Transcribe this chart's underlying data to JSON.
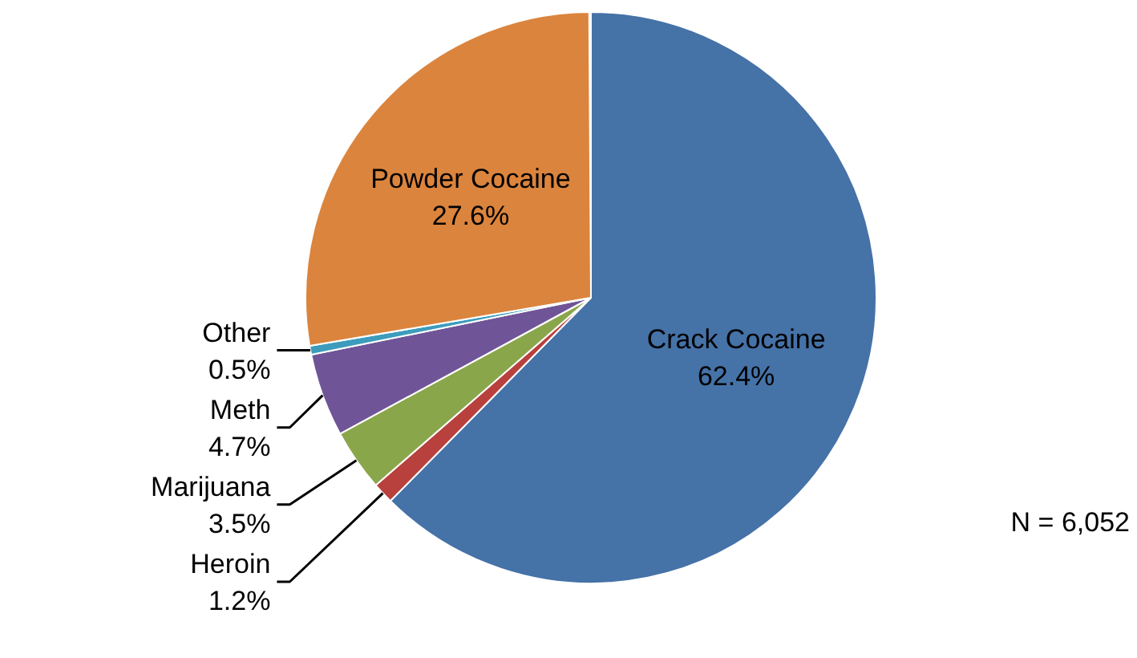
{
  "chart_data": {
    "type": "pie",
    "categories": [
      "Crack Cocaine",
      "Heroin",
      "Marijuana",
      "Meth",
      "Other",
      "Powder Cocaine"
    ],
    "values": [
      62.4,
      1.2,
      3.5,
      4.7,
      0.5,
      27.6
    ],
    "colors": [
      "#4572a7",
      "#b8403d",
      "#8aa64b",
      "#6f5597",
      "#3d9cbc",
      "#db843d"
    ],
    "value_labels": [
      "62.4%",
      "1.2%",
      "3.5%",
      "4.7%",
      "0.5%",
      "27.6%"
    ],
    "annotations": [
      "N = 6,052"
    ]
  }
}
